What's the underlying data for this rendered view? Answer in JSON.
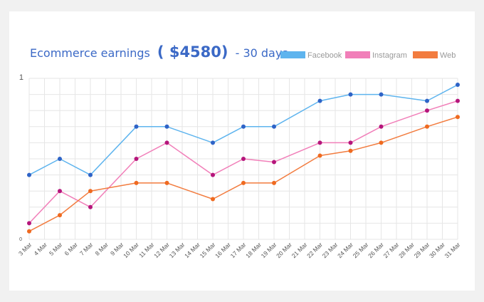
{
  "chart_data": {
    "type": "line",
    "title": {
      "prefix": "Ecommerce earnings",
      "amount": "( $4580)",
      "suffix": "- 30 days"
    },
    "xlabel": "",
    "ylabel": "",
    "y_tick_labels": [
      "1",
      "0"
    ],
    "categories": [
      "3 Mar",
      "4 Mar",
      "5 Mar",
      "6 Mar",
      "7 Mar",
      "8 Mar",
      "9 Mar",
      "10 Mar",
      "11 Mar",
      "12 Mar",
      "13 Mar",
      "14 Mar",
      "15 Mar",
      "16 Mar",
      "17 Mar",
      "18 Mar",
      "19 Mar",
      "20 Mar",
      "21 Mar",
      "22 Mar",
      "23 Mar",
      "24 Mar",
      "25 Mar",
      "26 Mar",
      "27 Mar",
      "28 Mar",
      "29 Mar",
      "30 Mar",
      "31 Mar"
    ],
    "ylim": [
      0,
      1
    ],
    "grid": true,
    "legend_position": "top-right",
    "series": [
      {
        "name": "Facebook",
        "color": "#5eb4ee",
        "point_color": "#2e63c7",
        "points": [
          {
            "x": "3 Mar",
            "y": 0.4
          },
          {
            "x": "5 Mar",
            "y": 0.5
          },
          {
            "x": "7 Mar",
            "y": 0.4
          },
          {
            "x": "10 Mar",
            "y": 0.7
          },
          {
            "x": "12 Mar",
            "y": 0.7
          },
          {
            "x": "15 Mar",
            "y": 0.6
          },
          {
            "x": "17 Mar",
            "y": 0.7
          },
          {
            "x": "19 Mar",
            "y": 0.7
          },
          {
            "x": "22 Mar",
            "y": 0.86
          },
          {
            "x": "24 Mar",
            "y": 0.9
          },
          {
            "x": "26 Mar",
            "y": 0.9
          },
          {
            "x": "29 Mar",
            "y": 0.86
          },
          {
            "x": "31 Mar",
            "y": 0.96
          }
        ]
      },
      {
        "name": "Instagram",
        "color": "#f17fb9",
        "point_color": "#b5157b",
        "points": [
          {
            "x": "3 Mar",
            "y": 0.1
          },
          {
            "x": "5 Mar",
            "y": 0.3
          },
          {
            "x": "7 Mar",
            "y": 0.2
          },
          {
            "x": "10 Mar",
            "y": 0.5
          },
          {
            "x": "12 Mar",
            "y": 0.6
          },
          {
            "x": "15 Mar",
            "y": 0.4
          },
          {
            "x": "17 Mar",
            "y": 0.5
          },
          {
            "x": "19 Mar",
            "y": 0.48
          },
          {
            "x": "22 Mar",
            "y": 0.6
          },
          {
            "x": "24 Mar",
            "y": 0.6
          },
          {
            "x": "26 Mar",
            "y": 0.7
          },
          {
            "x": "29 Mar",
            "y": 0.8
          },
          {
            "x": "31 Mar",
            "y": 0.86
          }
        ]
      },
      {
        "name": "Web",
        "color": "#f27c3f",
        "point_color": "#ef6a20",
        "points": [
          {
            "x": "3 Mar",
            "y": 0.05
          },
          {
            "x": "5 Mar",
            "y": 0.15
          },
          {
            "x": "7 Mar",
            "y": 0.3
          },
          {
            "x": "10 Mar",
            "y": 0.35
          },
          {
            "x": "12 Mar",
            "y": 0.35
          },
          {
            "x": "15 Mar",
            "y": 0.25
          },
          {
            "x": "17 Mar",
            "y": 0.35
          },
          {
            "x": "19 Mar",
            "y": 0.35
          },
          {
            "x": "22 Mar",
            "y": 0.52
          },
          {
            "x": "24 Mar",
            "y": 0.55
          },
          {
            "x": "26 Mar",
            "y": 0.6
          },
          {
            "x": "29 Mar",
            "y": 0.7
          },
          {
            "x": "31 Mar",
            "y": 0.76
          }
        ]
      }
    ]
  },
  "colors": {
    "title": "#3b69c6",
    "grid": "#e6e6e6",
    "tick_text": "#555555",
    "legend_text": "#999999"
  }
}
